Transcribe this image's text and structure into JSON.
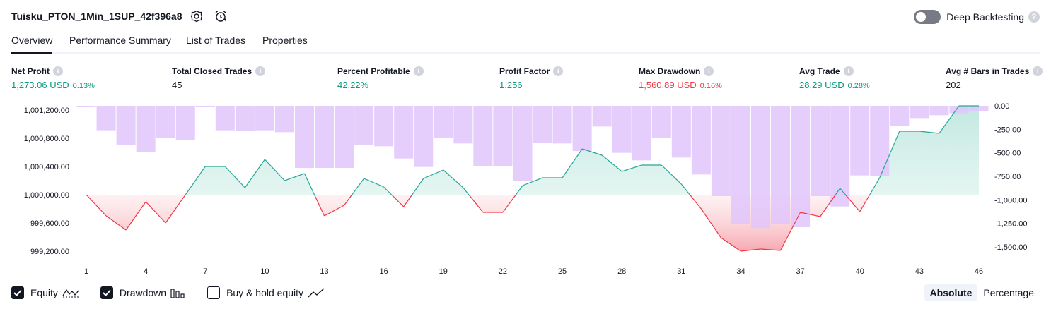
{
  "header": {
    "title": "Tuisku_PTON_1Min_1SUP_42f396a8",
    "deep_backtesting_label": "Deep Backtesting",
    "help_glyph": "?",
    "icons": [
      "settings-icon",
      "alarm-add-icon",
      "help-icon"
    ]
  },
  "tabs": [
    {
      "label": "Overview",
      "active": true
    },
    {
      "label": "Performance Summary",
      "active": false
    },
    {
      "label": "List of Trades",
      "active": false
    },
    {
      "label": "Properties",
      "active": false
    }
  ],
  "metrics": [
    {
      "label": "Net Profit",
      "value": "1,273.06 USD",
      "pct": "0.13%",
      "color": "green"
    },
    {
      "label": "Total Closed Trades",
      "value": "45",
      "pct": "",
      "color": "dark"
    },
    {
      "label": "Percent Profitable",
      "value": "42.22%",
      "pct": "",
      "color": "green"
    },
    {
      "label": "Profit Factor",
      "value": "1.256",
      "pct": "",
      "color": "green"
    },
    {
      "label": "Max Drawdown",
      "value": "1,560.89 USD",
      "pct": "0.16%",
      "color": "red"
    },
    {
      "label": "Avg Trade",
      "value": "28.29 USD",
      "pct": "0.28%",
      "color": "green"
    },
    {
      "label": "Avg # Bars in Trades",
      "value": "202",
      "pct": "",
      "color": "dark"
    }
  ],
  "info_glyph": "i",
  "chart_data": {
    "type": "line",
    "x": [
      1,
      2,
      3,
      4,
      5,
      6,
      7,
      8,
      9,
      10,
      11,
      12,
      13,
      14,
      15,
      16,
      17,
      18,
      19,
      20,
      21,
      22,
      23,
      24,
      25,
      26,
      27,
      28,
      29,
      30,
      31,
      32,
      33,
      34,
      35,
      36,
      37,
      38,
      39,
      40,
      41,
      42,
      43,
      44,
      45,
      46
    ],
    "left_axis": {
      "ticks": [
        "1,001,200.00",
        "1,000,800.00",
        "1,000,400.00",
        "1,000,000.00",
        "999,600.00",
        "999,200.00"
      ],
      "tick_values": [
        1001200,
        1000800,
        1000400,
        1000000,
        999600,
        999200
      ],
      "baseline": 1000000
    },
    "right_axis": {
      "ticks": [
        "0.00",
        "-250.00",
        "-500.00",
        "-750.00",
        "-1,000.00",
        "-1,250.00",
        "-1,500.00"
      ],
      "tick_values": [
        0,
        -250,
        -500,
        -750,
        -1000,
        -1250,
        -1500
      ]
    },
    "x_ticks": [
      "1",
      "4",
      "7",
      "10",
      "13",
      "16",
      "19",
      "22",
      "25",
      "28",
      "31",
      "34",
      "37",
      "40",
      "43",
      "46"
    ],
    "series": [
      {
        "name": "Equity",
        "axis": "left",
        "values": [
          1000000,
          999700,
          999500,
          999900,
          999600,
          1000000,
          1000400,
          1000400,
          1000100,
          1000500,
          1000200,
          1000300,
          999700,
          999850,
          1000230,
          1000110,
          999830,
          1000230,
          1000350,
          1000100,
          999750,
          999750,
          1000130,
          1000240,
          1000240,
          1000650,
          1000560,
          1000330,
          1000420,
          1000420,
          1000150,
          999800,
          999390,
          999200,
          999230,
          999210,
          999750,
          999690,
          1000090,
          999760,
          1000240,
          1000900,
          1000900,
          1000870,
          1001260,
          1001260
        ]
      },
      {
        "name": "Drawdown",
        "axis": "right",
        "values": [
          0,
          -260,
          -420,
          -490,
          -340,
          -360,
          0,
          -260,
          -270,
          -260,
          -280,
          -660,
          -660,
          -660,
          -420,
          -430,
          -560,
          -650,
          -340,
          -400,
          -640,
          -640,
          -800,
          -390,
          -400,
          -480,
          -220,
          -500,
          -580,
          -340,
          -550,
          -730,
          -960,
          -1260,
          -1300,
          -1260,
          -1290,
          -960,
          -1070,
          -740,
          -750,
          -210,
          -130,
          -100,
          -80,
          -60
        ]
      }
    ],
    "legend": [
      {
        "label": "Equity",
        "checked": true,
        "icon": "equity-line-icon"
      },
      {
        "label": "Drawdown",
        "checked": true,
        "icon": "drawdown-bars-icon"
      },
      {
        "label": "Buy & hold equity",
        "checked": false,
        "icon": "buy-hold-line-icon"
      }
    ],
    "colors": {
      "equity_up": "#26a69a",
      "equity_down": "#f23645",
      "equity_up_fill": "#d3efe9",
      "equity_down_fill": "#fbd4d8",
      "drawdown_bar": "#e1c6fb"
    },
    "grid": false
  },
  "mode": {
    "options": [
      "Absolute",
      "Percentage"
    ],
    "selected": "Absolute"
  }
}
